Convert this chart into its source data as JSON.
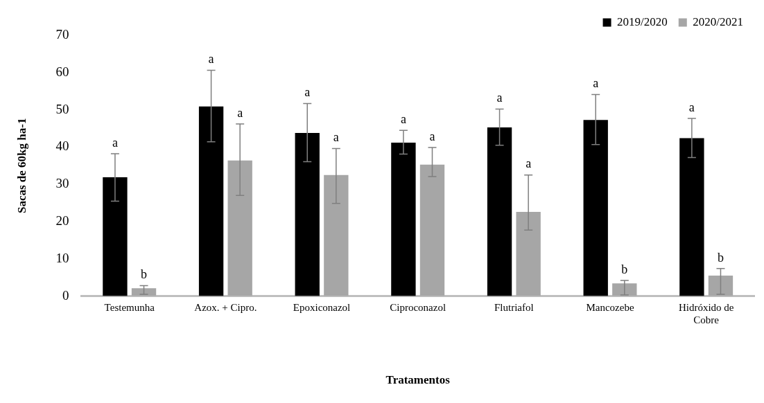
{
  "chart_data": {
    "type": "bar",
    "xlabel": "Tratamentos",
    "ylabel": "Sacas de 60kg ha-1",
    "categories": [
      "Testemunha",
      "Azox. + Cipro.",
      "Epoxiconazol",
      "Ciproconazol",
      "Flutriafol",
      "Mancozebe",
      "Hidróxido de Cobre"
    ],
    "series": [
      {
        "name": "2019/2020",
        "color": "#000000",
        "values": [
          31.9,
          50.9,
          43.8,
          41.2,
          45.3,
          47.3,
          42.4
        ],
        "errors": [
          [
            25.5,
            38.2
          ],
          [
            41.4,
            60.6
          ],
          [
            36.1,
            51.7
          ],
          [
            38.1,
            44.5
          ],
          [
            40.5,
            50.2
          ],
          [
            40.7,
            54.1
          ],
          [
            37.2,
            47.7
          ]
        ]
      },
      {
        "name": "2020/2021",
        "color": "#a6a6a6",
        "values": [
          2.1,
          36.4,
          32.5,
          35.3,
          22.6,
          3.4,
          5.5
        ],
        "errors": [
          [
            0.5,
            2.8
          ],
          [
            27.0,
            46.2
          ],
          [
            24.9,
            39.6
          ],
          [
            32.1,
            39.9
          ],
          [
            17.7,
            32.5
          ],
          [
            0.3,
            4.2
          ],
          [
            0.5,
            7.4
          ]
        ]
      }
    ],
    "annotations": [
      "a",
      "b",
      "a",
      "a",
      "a",
      "a",
      "a",
      "a",
      "a",
      "a",
      "a",
      "b",
      "a",
      "b"
    ],
    "ylim": [
      0,
      70
    ],
    "yticks": [
      0,
      10,
      20,
      30,
      40,
      50,
      60,
      70
    ],
    "grid": false,
    "legend": "top right"
  }
}
